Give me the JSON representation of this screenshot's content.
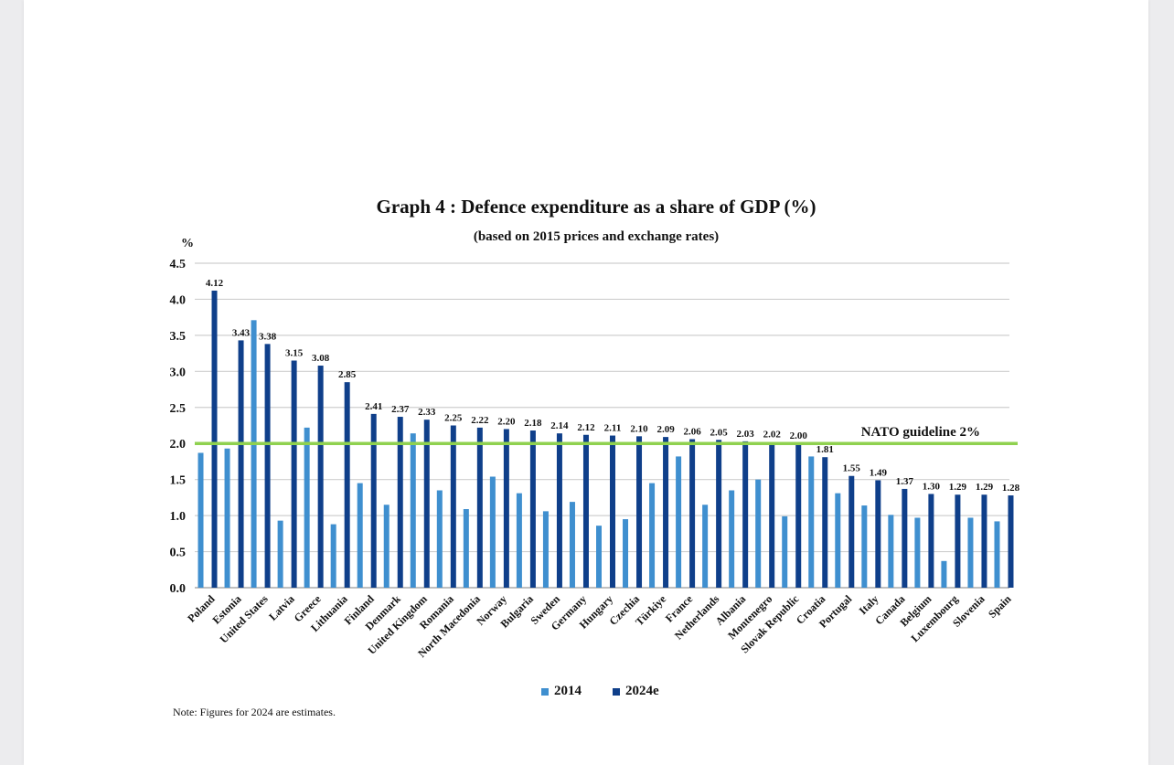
{
  "header": {
    "title": "Graph 4 : Defence expenditure as a share of GDP (%)",
    "subtitle": "(based on 2015 prices and exchange rates)",
    "unit": "%"
  },
  "footer": {
    "note": "Note: Figures for 2024 are estimates."
  },
  "colors": {
    "series_2014": "#3f8fcf",
    "series_2024e": "#0f3f8a",
    "guideline": "#8fd14f",
    "grid": "#cfcfcf"
  },
  "chart_data": {
    "type": "bar",
    "title": "Graph 4 : Defence expenditure as a share of GDP (%)",
    "subtitle": "(based on 2015 prices and exchange rates)",
    "ylabel": "%",
    "ylim": [
      0,
      4.5
    ],
    "yticks": [
      "0.0",
      "0.5",
      "1.0",
      "1.5",
      "2.0",
      "2.5",
      "3.0",
      "3.5",
      "4.0",
      "4.5"
    ],
    "grid": true,
    "legend_position": "bottom",
    "categories": [
      "Poland",
      "Estonia",
      "United States",
      "Latvia",
      "Greece",
      "Lithuania",
      "Finland",
      "Denmark",
      "United Kingdom",
      "Romania",
      "North Macedonia",
      "Norway",
      "Bulgaria",
      "Sweden",
      "Germany",
      "Hungary",
      "Czechia",
      "Türkiye",
      "France",
      "Netherlands",
      "Albania",
      "Montenegro",
      "Slovak Republic",
      "Croatia",
      "Portugal",
      "Italy",
      "Canada",
      "Belgium",
      "Luxembourg",
      "Slovenia",
      "Spain"
    ],
    "series": [
      {
        "name": "2014",
        "values": [
          1.87,
          1.93,
          3.71,
          0.93,
          2.22,
          0.88,
          1.45,
          1.15,
          2.14,
          1.35,
          1.09,
          1.54,
          1.31,
          1.06,
          1.19,
          0.86,
          0.95,
          1.45,
          1.82,
          1.15,
          1.35,
          1.5,
          0.99,
          1.82,
          1.31,
          1.14,
          1.01,
          0.97,
          0.37,
          0.97,
          0.92
        ]
      },
      {
        "name": "2024e",
        "values": [
          4.12,
          3.43,
          3.38,
          3.15,
          3.08,
          2.85,
          2.41,
          2.37,
          2.33,
          2.25,
          2.22,
          2.2,
          2.18,
          2.14,
          2.12,
          2.11,
          2.1,
          2.09,
          2.06,
          2.05,
          2.03,
          2.02,
          2.0,
          1.81,
          1.55,
          1.49,
          1.37,
          1.3,
          1.29,
          1.29,
          1.28
        ],
        "data_labels": [
          "4.12",
          "3.43",
          "3.38",
          "3.15",
          "3.08",
          "2.85",
          "2.41",
          "2.37",
          "2.33",
          "2.25",
          "2.22",
          "2.20",
          "2.18",
          "2.14",
          "2.12",
          "2.11",
          "2.10",
          "2.09",
          "2.06",
          "2.05",
          "2.03",
          "2.02",
          "2.00",
          "1.81",
          "1.55",
          "1.49",
          "1.37",
          "1.30",
          "1.29",
          "1.29",
          "1.28"
        ]
      }
    ],
    "reference_line": {
      "value": 2.0,
      "label": "NATO guideline 2%"
    }
  }
}
